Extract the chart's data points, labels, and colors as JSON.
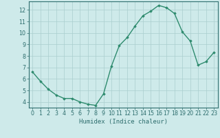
{
  "title": "",
  "xlabel": "Humidex (Indice chaleur)",
  "ylabel": "",
  "x": [
    0,
    1,
    2,
    3,
    4,
    5,
    6,
    7,
    8,
    9,
    10,
    11,
    12,
    13,
    14,
    15,
    16,
    17,
    18,
    19,
    20,
    21,
    22,
    23
  ],
  "y": [
    6.6,
    5.8,
    5.1,
    4.6,
    4.3,
    4.3,
    4.0,
    3.8,
    3.7,
    4.7,
    7.1,
    8.9,
    9.6,
    10.6,
    11.5,
    11.9,
    12.4,
    12.2,
    11.7,
    10.1,
    9.3,
    7.2,
    7.5,
    8.3
  ],
  "line_color": "#2e8b6e",
  "marker": "D",
  "marker_size": 1.8,
  "line_width": 1.0,
  "bg_color": "#ceeaea",
  "grid_color": "#aacece",
  "xlim": [
    -0.5,
    23.5
  ],
  "ylim": [
    3.5,
    12.75
  ],
  "yticks": [
    4,
    5,
    6,
    7,
    8,
    9,
    10,
    11,
    12
  ],
  "xticks": [
    0,
    1,
    2,
    3,
    4,
    5,
    6,
    7,
    8,
    9,
    10,
    11,
    12,
    13,
    14,
    15,
    16,
    17,
    18,
    19,
    20,
    21,
    22,
    23
  ],
  "tick_color": "#2e6e6e",
  "label_fontsize": 6.5,
  "tick_fontsize": 5.8,
  "spine_color": "#2e6e6e"
}
